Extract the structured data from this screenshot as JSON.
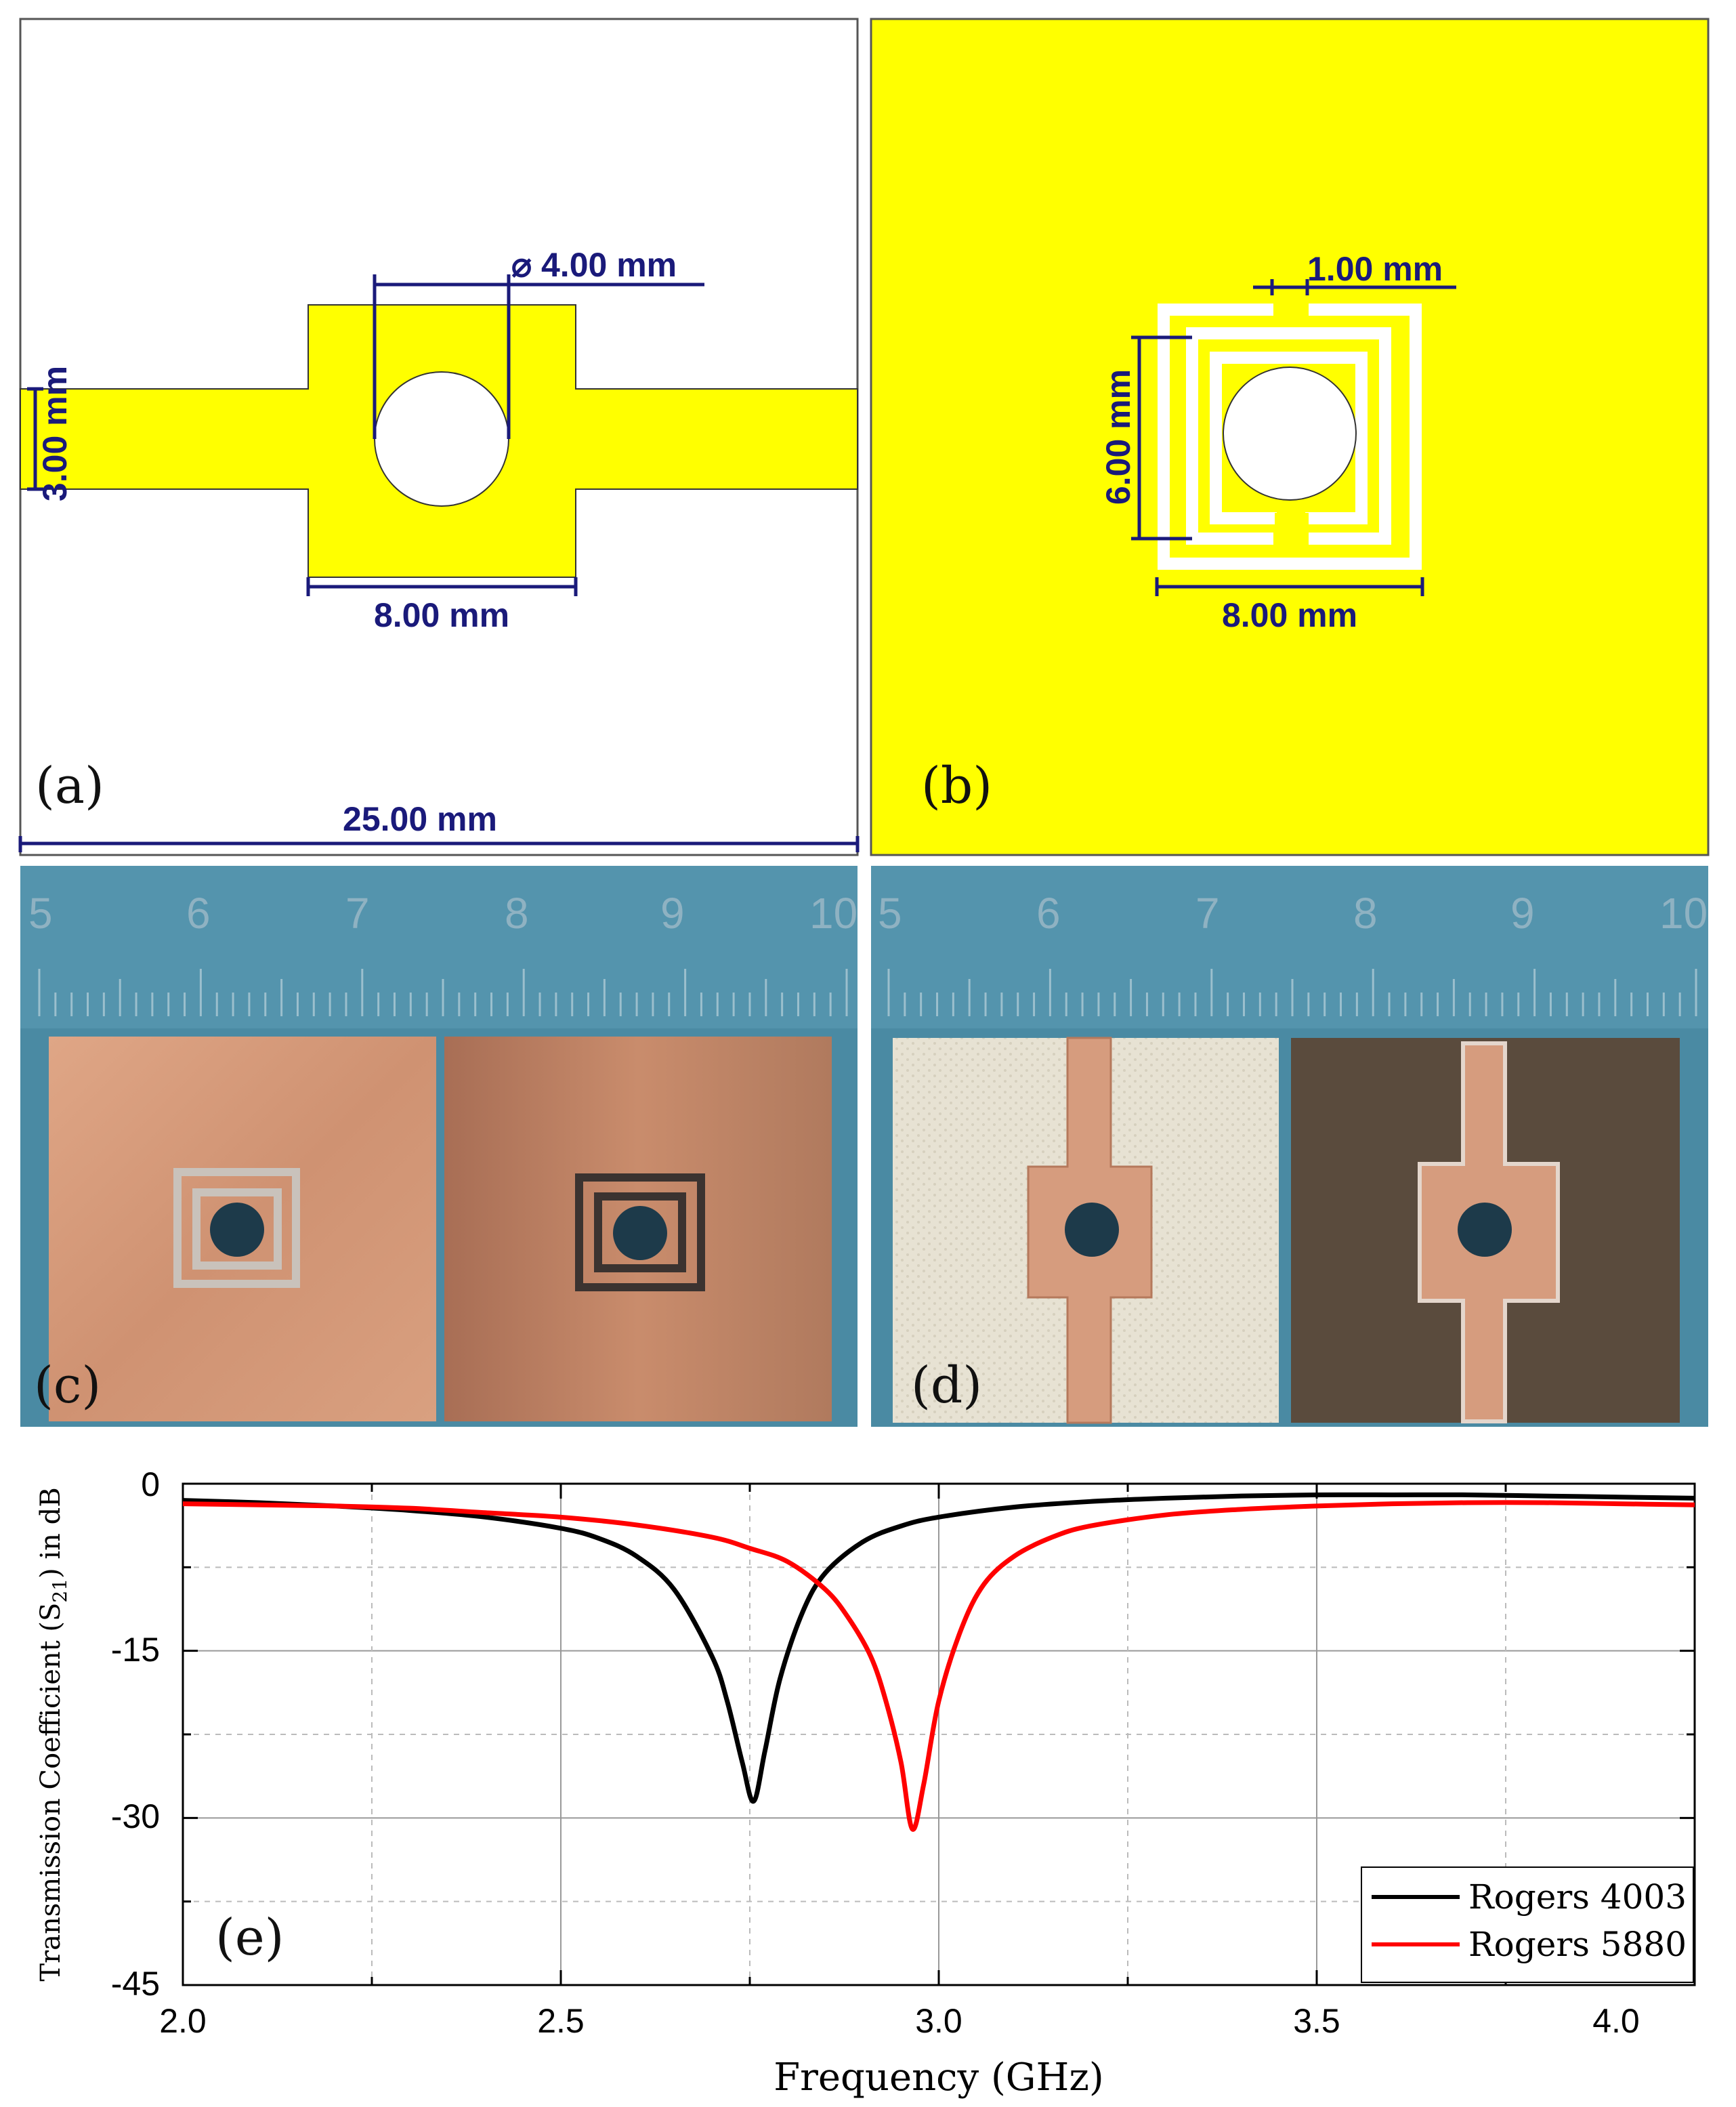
{
  "colors": {
    "yellow": "#ffff00",
    "dim_blue": "#1a1a7a",
    "copper": "#d79a78",
    "copper_dark": "#b88060",
    "ruler_blue": "#4a8aa3",
    "substrate_white": "#e7e2d3",
    "substrate_dark": "#5a4b3d",
    "rogers4003": "#000000",
    "rogers5880": "#ff0000"
  },
  "panel_a": {
    "label": "(a)",
    "dim_gap": "3.00 mm",
    "dim_hole": "⌀ 4.00 mm",
    "dim_width": "8.00 mm",
    "dim_total": "25.00 mm"
  },
  "panel_b": {
    "label": "(b)",
    "dim_slot": "1.00 mm",
    "dim_height": "6.00 mm",
    "dim_width": "8.00 mm"
  },
  "panel_c": {
    "label": "(c)",
    "ruler_numbers": [
      "5",
      "6",
      "7",
      "8",
      "9",
      "10"
    ]
  },
  "panel_d": {
    "label": "(d)",
    "ruler_numbers": [
      "5",
      "6",
      "7",
      "8",
      "9",
      "10"
    ]
  },
  "panel_e": {
    "label": "(e)"
  },
  "chart_data": {
    "type": "line",
    "title": "",
    "xlabel": "Frequency (GHz)",
    "ylabel": "Transmission Coefficient (S21) in dB",
    "ylabel_main": "Transmission Coefficient (S",
    "ylabel_sub": "21",
    "ylabel_tail": ") in dB",
    "xlim": [
      2.0,
      4.0
    ],
    "ylim": [
      -45,
      0
    ],
    "xticks": [
      "2.0",
      "2.5",
      "3.0",
      "3.5",
      "4.0"
    ],
    "yticks": [
      "0",
      "-15",
      "-30",
      "-45"
    ],
    "grid": true,
    "legend_position": "bottom-right",
    "series": [
      {
        "name": "Rogers 4003",
        "color": "#000000",
        "x": [
          2.0,
          2.1,
          2.2,
          2.3,
          2.4,
          2.5,
          2.55,
          2.6,
          2.65,
          2.7,
          2.72,
          2.74,
          2.755,
          2.77,
          2.79,
          2.82,
          2.85,
          2.9,
          2.95,
          3.0,
          3.1,
          3.2,
          3.3,
          3.4,
          3.5,
          3.6,
          3.7,
          3.8,
          3.9,
          4.0
        ],
        "y": [
          -1.5,
          -1.7,
          -2.0,
          -2.4,
          -3.0,
          -4.0,
          -4.9,
          -6.5,
          -9.5,
          -15.5,
          -19.5,
          -25.0,
          -28.5,
          -24.0,
          -17.5,
          -11.5,
          -8.0,
          -5.2,
          -3.8,
          -3.0,
          -2.1,
          -1.6,
          -1.3,
          -1.1,
          -1.0,
          -1.0,
          -1.0,
          -1.1,
          -1.2,
          -1.3
        ]
      },
      {
        "name": "Rogers 5880",
        "color": "#ff0000",
        "x": [
          2.0,
          2.1,
          2.2,
          2.3,
          2.4,
          2.5,
          2.6,
          2.7,
          2.75,
          2.8,
          2.85,
          2.88,
          2.91,
          2.93,
          2.95,
          2.965,
          2.98,
          3.0,
          3.03,
          3.06,
          3.1,
          3.15,
          3.2,
          3.3,
          3.4,
          3.5,
          3.6,
          3.7,
          3.8,
          3.9,
          4.0
        ],
        "y": [
          -1.8,
          -1.9,
          -2.0,
          -2.2,
          -2.6,
          -3.0,
          -3.7,
          -4.8,
          -5.8,
          -7.0,
          -9.5,
          -12.0,
          -15.5,
          -19.5,
          -25.0,
          -31.0,
          -27.0,
          -19.5,
          -13.0,
          -9.0,
          -6.5,
          -4.8,
          -3.8,
          -2.8,
          -2.3,
          -2.0,
          -1.8,
          -1.7,
          -1.7,
          -1.8,
          -1.9
        ]
      }
    ]
  }
}
